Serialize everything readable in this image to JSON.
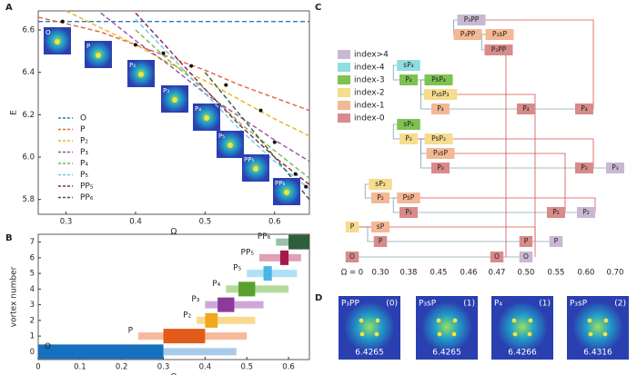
{
  "panels": [
    "A",
    "B",
    "C",
    "D"
  ],
  "chart_data": [
    {
      "type": "line",
      "x_label": "Ω",
      "y_label": "E",
      "xlim": [
        0.26,
        0.65
      ],
      "ylim": [
        5.73,
        6.69
      ],
      "xticks": [
        0.3,
        0.4,
        0.5,
        0.6
      ],
      "yticks": [
        5.8,
        {
          "value": 6,
          "label": "6.0"
        },
        6.2,
        6.4,
        6.6
      ],
      "line_style": "dashed",
      "legend": "lower left",
      "x": [
        0.26,
        0.3,
        0.35,
        0.4,
        0.45,
        0.5,
        0.55,
        0.6,
        0.65
      ],
      "series": [
        {
          "name": "O",
          "color": "#2a7ab9",
          "values": [
            6.64,
            6.64,
            6.64,
            6.64,
            6.64,
            6.64,
            6.64,
            6.64,
            6.64
          ]
        },
        {
          "name": "P",
          "color": "#e0623a",
          "values": [
            6.66,
            6.63,
            6.59,
            6.53,
            6.47,
            6.41,
            6.34,
            6.28,
            6.22
          ]
        },
        {
          "name": "P₂",
          "color": "#e8b320",
          "values": [
            null,
            6.69,
            6.61,
            6.53,
            6.44,
            6.36,
            6.27,
            6.18,
            6.1
          ]
        },
        {
          "name": "P₃",
          "color": "#9b4fa8",
          "values": [
            null,
            null,
            6.68,
            6.55,
            6.43,
            6.3,
            6.19,
            6.08,
            5.98
          ]
        },
        {
          "name": "P₄",
          "color": "#7ab648",
          "values": [
            null,
            null,
            null,
            6.6,
            6.45,
            6.32,
            6.16,
            6.03,
            5.9
          ]
        },
        {
          "name": "P₅",
          "color": "#6cc7e8",
          "values": [
            null,
            null,
            null,
            6.65,
            6.48,
            6.3,
            6.13,
            5.98,
            5.85
          ]
        },
        {
          "name": "PP₅",
          "color": "#8b2252",
          "values": [
            null,
            null,
            null,
            6.68,
            6.5,
            6.32,
            6.15,
            6.0,
            5.87
          ]
        },
        {
          "name": "PP₆",
          "color": "#2e5e3a",
          "values": [
            null,
            null,
            null,
            null,
            null,
            6.4,
            6.2,
            6.0,
            5.8
          ]
        }
      ],
      "markers": {
        "color": "#111",
        "x": [
          0.295,
          0.4,
          0.44,
          0.48,
          0.53,
          0.58,
          0.6,
          0.63,
          0.645
        ],
        "values": [
          6.64,
          6.53,
          6.49,
          6.43,
          6.34,
          6.22,
          6.07,
          5.92,
          5.86
        ]
      }
    },
    {
      "type": "range_bar",
      "x_label": "Ω",
      "y_label": "vortex number",
      "xlim": [
        0,
        0.65
      ],
      "ylim": [
        -0.5,
        7.5
      ],
      "xticks": [
        0,
        0.1,
        0.2,
        0.3,
        0.4,
        0.5,
        0.6
      ],
      "yticks": [
        0,
        1,
        2,
        3,
        4,
        5,
        6,
        7
      ],
      "bars": [
        {
          "name": "O",
          "level": 0,
          "color": "#1570bd",
          "light_color": "#a9cbea",
          "range": [
            0,
            0.475
          ],
          "stable": [
            0,
            0.3
          ]
        },
        {
          "name": "P",
          "level": 1,
          "color": "#e35b1a",
          "light_color": "#f7b99a",
          "range": [
            0.24,
            0.5
          ],
          "stable": [
            0.3,
            0.4
          ]
        },
        {
          "name": "P₂",
          "level": 2,
          "color": "#f0a81c",
          "light_color": "#f9d98e",
          "range": [
            0.38,
            0.52
          ],
          "stable": [
            0.4,
            0.43
          ]
        },
        {
          "name": "P₃",
          "level": 3,
          "color": "#8e3a9a",
          "light_color": "#cfa6da",
          "range": [
            0.4,
            0.54
          ],
          "stable": [
            0.43,
            0.47
          ]
        },
        {
          "name": "P₄",
          "level": 4,
          "color": "#5aa02c",
          "light_color": "#b4d99c",
          "range": [
            0.45,
            0.6
          ],
          "stable": [
            0.48,
            0.52
          ]
        },
        {
          "name": "P₅",
          "level": 5,
          "color": "#4ab4e6",
          "light_color": "#aee0f6",
          "range": [
            0.5,
            0.62
          ],
          "stable": [
            0.54,
            0.56
          ]
        },
        {
          "name": "PP₅",
          "level": 6,
          "color": "#a6194a",
          "light_color": "#e0a0b6",
          "range": [
            0.53,
            0.63
          ],
          "stable": [
            0.58,
            0.6
          ]
        },
        {
          "name": "PP₆",
          "level": 7,
          "color": "#2e5e3a",
          "light_color": "#9cc0a6",
          "range": [
            0.57,
            0.64
          ],
          "stable": [
            0.6,
            0.65
          ]
        }
      ]
    }
  ],
  "diagram": {
    "legend": [
      {
        "label": "index>4",
        "color": "#c9b8d4"
      },
      {
        "label": "index-4",
        "color": "#8fdde0"
      },
      {
        "label": "index-3",
        "color": "#7ec251"
      },
      {
        "label": "index-2",
        "color": "#f6dc8e"
      },
      {
        "label": "index-1",
        "color": "#f4b894"
      },
      {
        "label": "index-0",
        "color": "#d98a8a"
      }
    ],
    "nodes": [
      {
        "label": "P₃PP",
        "color": "#c9b8d4"
      },
      {
        "label": "P₃PP",
        "color": "#f4b894"
      },
      {
        "label": "P₃sP",
        "color": "#f4b894"
      },
      {
        "label": "P₃PP",
        "color": "#d98a8a"
      },
      {
        "label": "sP₄",
        "color": "#8fdde0"
      },
      {
        "label": "P₄",
        "color": "#7ec251"
      },
      {
        "label": "PsP₄",
        "color": "#7ec251"
      },
      {
        "label": "P₄sP₃",
        "color": "#f6dc8e"
      },
      {
        "label": "P₄",
        "color": "#f4b894"
      },
      {
        "label": "P₄",
        "color": "#d98a8a"
      },
      {
        "label": "P₄",
        "color": "#d98a8a"
      },
      {
        "label": "sP₃",
        "color": "#7ec251"
      },
      {
        "label": "P₃",
        "color": "#f6dc8e"
      },
      {
        "label": "PsP₃",
        "color": "#f6dc8e"
      },
      {
        "label": "P₃sP",
        "color": "#f4b894"
      },
      {
        "label": "P₃",
        "color": "#d98a8a"
      },
      {
        "label": "P₃",
        "color": "#d98a8a"
      },
      {
        "label": "P₃",
        "color": "#c9b8d4"
      },
      {
        "label": "sP₂",
        "color": "#f6dc8e"
      },
      {
        "label": "P₂",
        "color": "#f4b894"
      },
      {
        "label": "PsP",
        "color": "#f4b894"
      },
      {
        "label": "P₂",
        "color": "#d98a8a"
      },
      {
        "label": "P₂",
        "color": "#d98a8a"
      },
      {
        "label": "P₂",
        "color": "#c9b8d4"
      },
      {
        "label": "P",
        "color": "#f6dc8e"
      },
      {
        "label": "sP",
        "color": "#f4b894"
      },
      {
        "label": "P",
        "color": "#d98a8a"
      },
      {
        "label": "P",
        "color": "#d98a8a"
      },
      {
        "label": "P",
        "color": "#c9b8d4"
      },
      {
        "label": "O",
        "color": "#d98a8a"
      },
      {
        "label": "O",
        "color": "#d98a8a"
      },
      {
        "label": "O",
        "color": "#c9b8d4"
      }
    ],
    "omega_labels": [
      "Ω = 0",
      "0.30",
      "0.38",
      "0.45",
      "0.46",
      "0.47",
      "0.50",
      "0.55",
      "0.60",
      "0.70"
    ]
  },
  "images": [
    {
      "label": "P₃PP",
      "index": "(0)",
      "energy": "6.4265"
    },
    {
      "label": "P₃sP",
      "index": "(1)",
      "energy": "6.4265"
    },
    {
      "label": "P₄",
      "index": "(1)",
      "energy": "6.4266"
    },
    {
      "label": "P₃sP",
      "index": "(2)",
      "energy": "6.4316"
    }
  ]
}
